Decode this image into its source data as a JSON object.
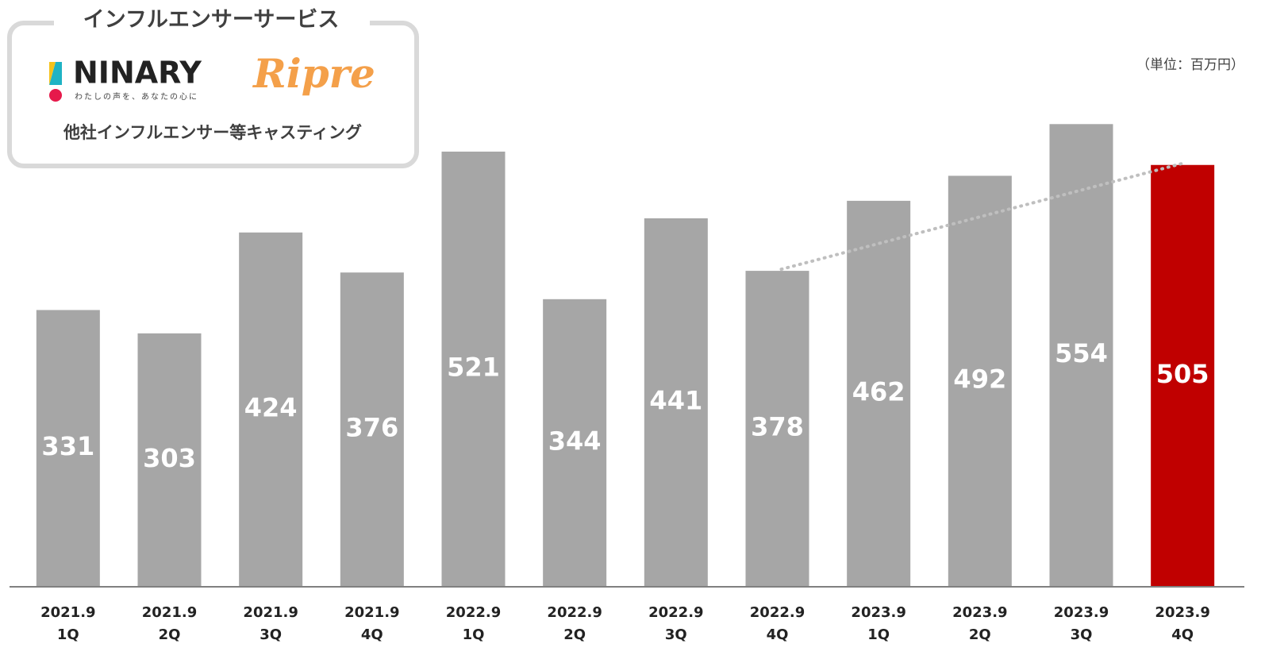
{
  "chart_data": {
    "type": "bar",
    "unit_label": "（単位：百万円）",
    "categories": [
      [
        "2021.9",
        "1Q"
      ],
      [
        "2021.9",
        "2Q"
      ],
      [
        "2021.9",
        "3Q"
      ],
      [
        "2021.9",
        "4Q"
      ],
      [
        "2022.9",
        "1Q"
      ],
      [
        "2022.9",
        "2Q"
      ],
      [
        "2022.9",
        "3Q"
      ],
      [
        "2022.9",
        "4Q"
      ],
      [
        "2023.9",
        "1Q"
      ],
      [
        "2023.9",
        "2Q"
      ],
      [
        "2023.9",
        "3Q"
      ],
      [
        "2023.9",
        "4Q"
      ]
    ],
    "values": [
      331,
      303,
      424,
      376,
      521,
      344,
      441,
      378,
      462,
      492,
      554,
      505
    ],
    "colors": [
      "#a6a6a6",
      "#a6a6a6",
      "#a6a6a6",
      "#a6a6a6",
      "#a6a6a6",
      "#a6a6a6",
      "#a6a6a6",
      "#a6a6a6",
      "#a6a6a6",
      "#a6a6a6",
      "#a6a6a6",
      "#c00000"
    ],
    "ylim": [
      0,
      700
    ],
    "comparison": {
      "from_index": 7,
      "to_index": 11
    }
  },
  "panel": {
    "title": "インフルエンサーサービス",
    "brand_1": "NINARY",
    "brand_1_tagline": "わたしの声を、あなたの心に",
    "brand_2": "Ripre",
    "subtitle": "他社インフルエンサー等キャスティング"
  }
}
